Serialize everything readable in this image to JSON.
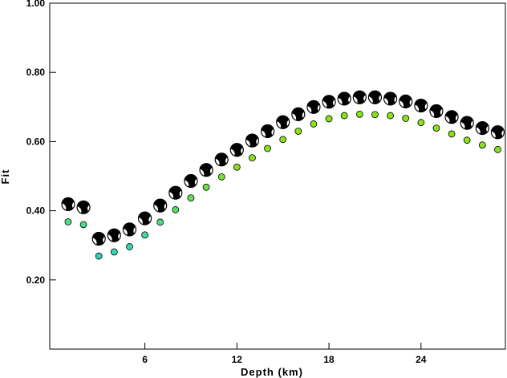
{
  "chart_data": {
    "type": "scatter",
    "xlabel": "Depth (km)",
    "ylabel": "Fit",
    "xlim": [
      -0.2,
      29.5
    ],
    "ylim": [
      0.0,
      1.0
    ],
    "x_ticks": [
      6,
      12,
      18,
      24
    ],
    "x_tick_labels": [
      "6",
      "12",
      "18",
      "24"
    ],
    "y_ticks": [
      0.2,
      0.4,
      0.6,
      0.8,
      1.0
    ],
    "y_tick_labels": [
      "0.20",
      "0.40",
      "0.60",
      "0.80",
      "1.00"
    ],
    "grid": false,
    "colors": {
      "mechanism_fill": "#000000",
      "mechanism_white": "#ffffff",
      "low_fit_dot": "#2ad6c0",
      "high_fit_dot": "#86e21c"
    },
    "series": [
      {
        "values_x": [
          1,
          2,
          3,
          4,
          5,
          6,
          7,
          8,
          9,
          10,
          11,
          12,
          13,
          14,
          15,
          16,
          17,
          18,
          19,
          20,
          21,
          22,
          23,
          24,
          25,
          26,
          27,
          28,
          29
        ],
        "mechanism_fit": [
          0.419,
          0.41,
          0.319,
          0.329,
          0.346,
          0.378,
          0.415,
          0.452,
          0.486,
          0.518,
          0.548,
          0.576,
          0.603,
          0.63,
          0.656,
          0.679,
          0.7,
          0.715,
          0.724,
          0.728,
          0.728,
          0.724,
          0.716,
          0.704,
          0.688,
          0.671,
          0.654,
          0.639,
          0.627
        ],
        "dot_fit": [
          0.368,
          0.36,
          0.269,
          0.281,
          0.296,
          0.33,
          0.367,
          0.403,
          0.437,
          0.468,
          0.498,
          0.526,
          0.553,
          0.58,
          0.606,
          0.63,
          0.651,
          0.666,
          0.675,
          0.679,
          0.678,
          0.675,
          0.667,
          0.655,
          0.639,
          0.622,
          0.604,
          0.59,
          0.577
        ]
      }
    ]
  }
}
